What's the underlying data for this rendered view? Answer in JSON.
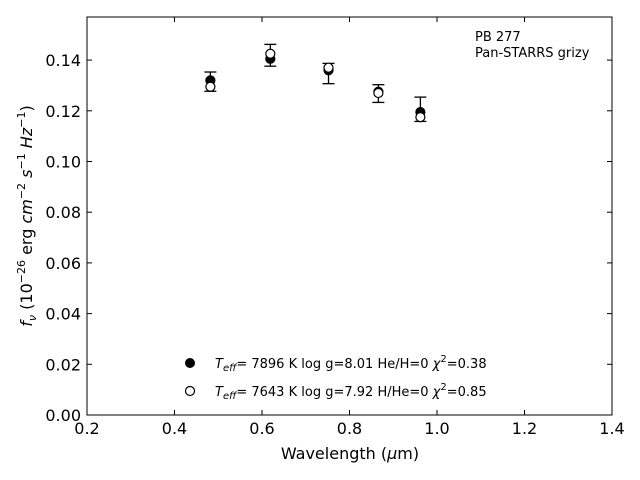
{
  "chart_data": {
    "type": "scatter",
    "xlabel": "Wavelength (μm)",
    "ylabel": "fν (10⁻²⁶ erg cm⁻² s⁻¹ Hz⁻¹)",
    "xlim": [
      0.2,
      1.4
    ],
    "ylim": [
      0.0,
      0.157
    ],
    "xticks": [
      "0.2",
      "0.4",
      "0.6",
      "0.8",
      "1.0",
      "1.2",
      "1.4"
    ],
    "yticks": [
      "0.00",
      "0.02",
      "0.04",
      "0.06",
      "0.08",
      "0.10",
      "0.12",
      "0.14"
    ],
    "grid": false,
    "annotation": [
      "PB 277",
      "Pan-STARRS grizy"
    ],
    "observed": {
      "x": [
        0.482,
        0.619,
        0.752,
        0.866,
        0.962
      ],
      "y": [
        0.1315,
        0.1419,
        0.1347,
        0.1268,
        0.1206
      ],
      "yerr": [
        0.0038,
        0.0043,
        0.004,
        0.0035,
        0.0048
      ]
    },
    "series": [
      {
        "name": "Teff= 7896 K log g=8.01 He/H=0 χ²=0.38",
        "marker": "filled-circle",
        "x": [
          0.482,
          0.619,
          0.752,
          0.866,
          0.962
        ],
        "y": [
          0.132,
          0.1405,
          0.136,
          0.1275,
          0.1195
        ]
      },
      {
        "name": "Teff= 7643 K log g=7.92 H/He=0 χ²=0.85",
        "marker": "open-circle",
        "x": [
          0.482,
          0.619,
          0.752,
          0.866,
          0.962
        ],
        "y": [
          0.1295,
          0.1425,
          0.137,
          0.127,
          0.1175
        ]
      }
    ],
    "legend": {
      "placement": "lower-center",
      "entries": [
        {
          "teff": "7896 K",
          "logg": "log g=8.01",
          "comp": "He/H=0",
          "chi2": "=0.38"
        },
        {
          "teff": "7643 K",
          "logg": "log g=7.92",
          "comp": "H/He=0",
          "chi2": "=0.85"
        }
      ]
    }
  }
}
